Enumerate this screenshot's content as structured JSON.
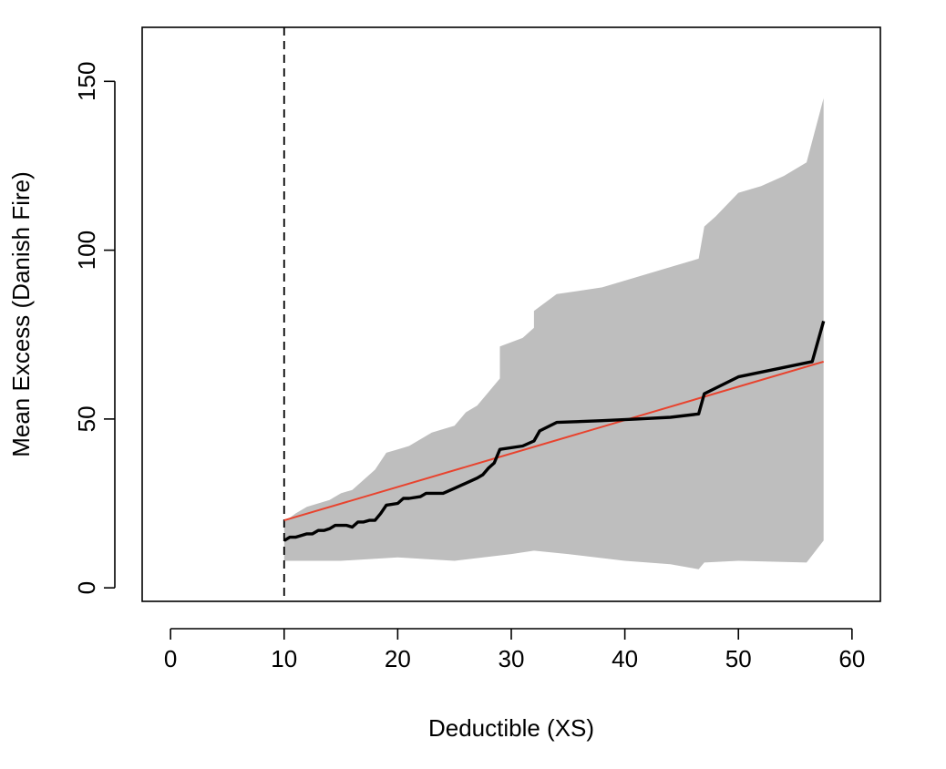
{
  "chart_data": {
    "type": "line",
    "title": "",
    "xlabel": "Deductible (XS)",
    "ylabel": "Mean Excess (Danish Fire)",
    "xlim": [
      -2.5,
      62.5
    ],
    "ylim": [
      -4,
      166
    ],
    "xticks": [
      0,
      10,
      20,
      30,
      40,
      50,
      60
    ],
    "yticks": [
      0,
      50,
      100,
      150
    ],
    "threshold_x": 10,
    "grid": false,
    "colors": {
      "band": "#bebebe",
      "mean_excess": "#000000",
      "fit": "#e8432e",
      "threshold": "#000000"
    },
    "series": [
      {
        "values": [
          [
            10,
            14
          ],
          [
            10.5,
            15
          ],
          [
            11,
            15
          ],
          [
            11.5,
            15.5
          ],
          [
            12,
            16
          ],
          [
            12.5,
            16
          ],
          [
            13,
            17
          ],
          [
            13.5,
            17
          ],
          [
            14,
            17.5
          ],
          [
            14.5,
            18.5
          ],
          [
            15.5,
            18.5
          ],
          [
            16,
            18
          ],
          [
            16.5,
            19.5
          ],
          [
            17,
            19.5
          ],
          [
            17.5,
            20
          ],
          [
            18,
            20
          ],
          [
            18.5,
            22
          ],
          [
            19,
            24.5
          ],
          [
            20,
            25
          ],
          [
            20.5,
            26.5
          ],
          [
            21,
            26.5
          ],
          [
            22,
            27
          ],
          [
            22.5,
            28
          ],
          [
            24,
            28
          ],
          [
            25,
            29.5
          ],
          [
            26,
            31
          ],
          [
            27,
            32.5
          ],
          [
            27.5,
            33.5
          ],
          [
            28,
            35.5
          ],
          [
            28.5,
            37
          ],
          [
            29,
            41
          ],
          [
            31,
            42
          ],
          [
            32,
            43.5
          ],
          [
            32.5,
            46.5
          ],
          [
            34,
            49
          ],
          [
            38,
            49.5
          ],
          [
            41,
            50
          ],
          [
            44,
            50.5
          ],
          [
            46.5,
            51.5
          ],
          [
            47,
            57.5
          ],
          [
            50,
            62.5
          ],
          [
            56.5,
            67
          ],
          [
            57.5,
            79
          ]
        ]
      },
      {
        "values": [
          [
            10,
            20
          ],
          [
            57.5,
            67
          ]
        ]
      },
      {
        "upper": [
          [
            10,
            19.5
          ],
          [
            11,
            22
          ],
          [
            12,
            24
          ],
          [
            14,
            26
          ],
          [
            15,
            28
          ],
          [
            16,
            29
          ],
          [
            17,
            32
          ],
          [
            18,
            35
          ],
          [
            19,
            40
          ],
          [
            20,
            41
          ],
          [
            21,
            42
          ],
          [
            22,
            44
          ],
          [
            23,
            46
          ],
          [
            24,
            47
          ],
          [
            25,
            48
          ],
          [
            26,
            52
          ],
          [
            27,
            54
          ],
          [
            28,
            58
          ],
          [
            29,
            62
          ],
          [
            29,
            71.5
          ],
          [
            31,
            74
          ],
          [
            32,
            77
          ],
          [
            32,
            82
          ],
          [
            34,
            87
          ],
          [
            38,
            89
          ],
          [
            41,
            92
          ],
          [
            44,
            95
          ],
          [
            46.5,
            97.5
          ],
          [
            47,
            107
          ],
          [
            48,
            110
          ],
          [
            50,
            117
          ],
          [
            52,
            119
          ],
          [
            54,
            122
          ],
          [
            56,
            126
          ],
          [
            57.5,
            145
          ]
        ],
        "lower": [
          [
            10,
            8
          ],
          [
            15,
            8
          ],
          [
            20,
            9
          ],
          [
            25,
            8
          ],
          [
            30,
            10
          ],
          [
            32,
            11
          ],
          [
            35,
            10
          ],
          [
            40,
            8
          ],
          [
            44,
            7
          ],
          [
            46.5,
            5.5
          ],
          [
            47,
            7.5
          ],
          [
            50,
            8
          ],
          [
            56,
            7.5
          ],
          [
            57.5,
            14
          ]
        ]
      }
    ]
  }
}
